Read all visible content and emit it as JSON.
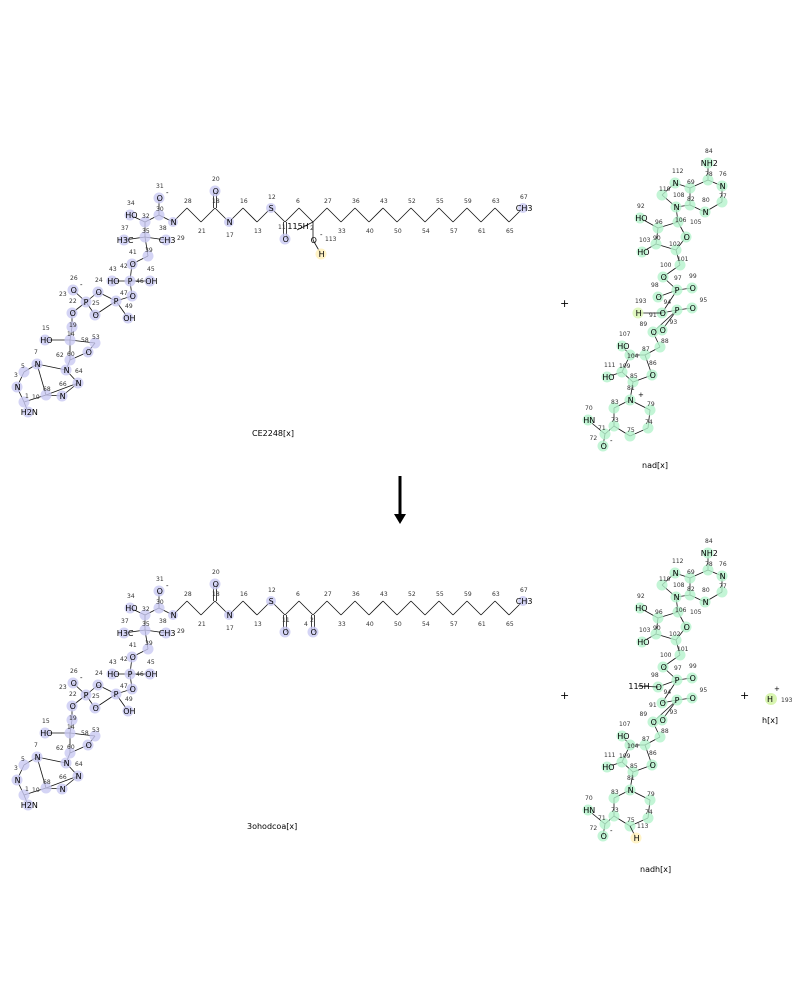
{
  "colors": {
    "N": "#2b50d8",
    "O": "#e0102a",
    "S": "#c8a000",
    "P": "#e08000",
    "H": "#000000",
    "coa_highlight": "#c9c9f2",
    "nad_highlight": "#b4f2cc",
    "h_highlight": "#d8f5b0",
    "moved_h_highlight": "#fff0b8"
  },
  "reaction": {
    "arrow": "down",
    "plus_signs": [
      "+",
      "+",
      "+"
    ],
    "reactants": [
      {
        "name": "CE2248[x]"
      },
      {
        "name": "nad[x]"
      }
    ],
    "products": [
      {
        "name": "3ohodcoa[x]"
      },
      {
        "name": "nadh[x]"
      },
      {
        "name": "h[x]",
        "atom": "H",
        "charge": "+",
        "number": "193"
      }
    ]
  },
  "coa_head": [
    {
      "t": "O",
      "n": "31",
      "q": "-"
    },
    {
      "t": "HO",
      "n": "34"
    },
    {
      "t": "",
      "n": "30"
    },
    {
      "t": "",
      "n": "32"
    },
    {
      "t": "",
      "n": "35"
    },
    {
      "t": "H3C",
      "n": "37"
    },
    {
      "t": "CH3",
      "n": "38"
    },
    {
      "t": "",
      "n": "39"
    },
    {
      "t": "O",
      "n": "41"
    },
    {
      "t": "P",
      "n": "42"
    },
    {
      "t": "HO",
      "n": "43"
    },
    {
      "t": "OH",
      "n": "45"
    },
    {
      "t": "O",
      "n": "46"
    },
    {
      "t": "P",
      "n": "47"
    },
    {
      "t": "O",
      "n": "24"
    },
    {
      "t": "OH",
      "n": "49"
    },
    {
      "t": "O",
      "n": "25"
    },
    {
      "t": "O",
      "n": "26",
      "q": "-"
    },
    {
      "t": "P",
      "n": "23"
    },
    {
      "t": "O",
      "n": "22"
    },
    {
      "t": "",
      "n": "19"
    },
    {
      "t": "HO",
      "n": "15"
    },
    {
      "t": "",
      "n": "14"
    },
    {
      "t": "",
      "n": "53"
    },
    {
      "t": "O",
      "n": "58"
    },
    {
      "t": "",
      "n": "60"
    },
    {
      "t": "N",
      "n": "62"
    },
    {
      "t": "N",
      "n": "7"
    },
    {
      "t": "",
      "n": "5"
    },
    {
      "t": "N",
      "n": "3"
    },
    {
      "t": "",
      "n": "1"
    },
    {
      "t": "",
      "n": "68"
    },
    {
      "t": "N",
      "n": "64"
    },
    {
      "t": "N",
      "n": "66"
    },
    {
      "t": "H2N",
      "n": "10"
    }
  ],
  "reactant_chain": [
    {
      "t": "N",
      "n": "29"
    },
    {
      "t": "",
      "n": "28"
    },
    {
      "t": "",
      "n": "21"
    },
    {
      "t": "",
      "n": "18",
      "o": {
        "t": "O",
        "n": "20"
      }
    },
    {
      "t": "N",
      "n": "17"
    },
    {
      "t": "",
      "n": "16"
    },
    {
      "t": "",
      "n": "13"
    },
    {
      "t": "S",
      "n": "12"
    },
    {
      "t": "",
      "n": "",
      "o": {
        "t": "O",
        "n": "11"
      }
    },
    {
      "t": "",
      "n": "6"
    },
    {
      "t": "",
      "n": "",
      "subs": [
        {
          "t": "115H",
          "n": ""
        },
        {
          "t": "O",
          "n": "2",
          "q": "-"
        },
        {
          "t": "H",
          "n": "113"
        }
      ]
    },
    {
      "t": "",
      "n": "27"
    },
    {
      "t": "",
      "n": "33"
    },
    {
      "t": "",
      "n": "36"
    },
    {
      "t": "",
      "n": "40"
    },
    {
      "t": "",
      "n": "43"
    },
    {
      "t": "",
      "n": "50"
    },
    {
      "t": "",
      "n": "52"
    },
    {
      "t": "",
      "n": "54"
    },
    {
      "t": "",
      "n": "55"
    },
    {
      "t": "",
      "n": "57"
    },
    {
      "t": "",
      "n": "59"
    },
    {
      "t": "",
      "n": "61"
    },
    {
      "t": "",
      "n": "63"
    },
    {
      "t": "",
      "n": "65"
    },
    {
      "t": "CH3",
      "n": "67"
    }
  ],
  "product_chain": [
    {
      "t": "N",
      "n": "29"
    },
    {
      "t": "",
      "n": "28"
    },
    {
      "t": "",
      "n": "21"
    },
    {
      "t": "",
      "n": "18",
      "o": {
        "t": "O",
        "n": "20"
      }
    },
    {
      "t": "N",
      "n": "17"
    },
    {
      "t": "",
      "n": "16"
    },
    {
      "t": "",
      "n": "13"
    },
    {
      "t": "S",
      "n": "12"
    },
    {
      "t": "",
      "n": "",
      "o": {
        "t": "O",
        "n": "11"
      }
    },
    {
      "t": "",
      "n": "6"
    },
    {
      "t": "",
      "n": "4",
      "o": {
        "t": "O",
        "n": "2"
      }
    },
    {
      "t": "",
      "n": "27"
    },
    {
      "t": "",
      "n": "33"
    },
    {
      "t": "",
      "n": "36"
    },
    {
      "t": "",
      "n": "40"
    },
    {
      "t": "",
      "n": "43"
    },
    {
      "t": "",
      "n": "50"
    },
    {
      "t": "",
      "n": "52"
    },
    {
      "t": "",
      "n": "54"
    },
    {
      "t": "",
      "n": "55"
    },
    {
      "t": "",
      "n": "57"
    },
    {
      "t": "",
      "n": "59"
    },
    {
      "t": "",
      "n": "61"
    },
    {
      "t": "",
      "n": "63"
    },
    {
      "t": "",
      "n": "65"
    },
    {
      "t": "CH3",
      "n": "67"
    }
  ],
  "nad_atoms": [
    {
      "t": "NH2",
      "n": "84"
    },
    {
      "t": "",
      "n": "78"
    },
    {
      "t": "N",
      "n": "76"
    },
    {
      "t": "",
      "n": "77"
    },
    {
      "t": "N",
      "n": "80"
    },
    {
      "t": "",
      "n": "82"
    },
    {
      "t": "",
      "n": "69"
    },
    {
      "t": "N",
      "n": "112"
    },
    {
      "t": "",
      "n": "110"
    },
    {
      "t": "N",
      "n": "108"
    },
    {
      "t": "",
      "n": "106"
    },
    {
      "t": "O",
      "n": "105"
    },
    {
      "t": "",
      "n": "102"
    },
    {
      "t": "",
      "n": "101"
    },
    {
      "t": "",
      "n": "96"
    },
    {
      "t": "HO",
      "n": "92"
    },
    {
      "t": "",
      "n": "90"
    },
    {
      "t": "HO",
      "n": "103"
    },
    {
      "t": "O",
      "n": "100"
    },
    {
      "t": "P",
      "n": "97"
    },
    {
      "t": "O",
      "n": "99"
    },
    {
      "t": "O",
      "n": "98"
    },
    {
      "t": "O",
      "n": "91"
    },
    {
      "t": "P",
      "n": "94"
    },
    {
      "t": "O",
      "n": "95"
    },
    {
      "t": "O",
      "n": "93"
    },
    {
      "t": "O",
      "n": "89"
    },
    {
      "t": "",
      "n": "88"
    },
    {
      "t": "",
      "n": "87"
    },
    {
      "t": "",
      "n": "104"
    },
    {
      "t": "HO",
      "n": "107"
    },
    {
      "t": "",
      "n": "109"
    },
    {
      "t": "HO",
      "n": "111"
    },
    {
      "t": "O",
      "n": "86"
    },
    {
      "t": "",
      "n": "85"
    },
    {
      "t": "N",
      "n": "81"
    },
    {
      "t": "",
      "n": "79"
    },
    {
      "t": "",
      "n": "74"
    },
    {
      "t": "",
      "n": "75"
    },
    {
      "t": "",
      "n": "73"
    },
    {
      "t": "",
      "n": "83"
    },
    {
      "t": "",
      "n": "71"
    },
    {
      "t": "HN",
      "n": "70"
    },
    {
      "t": "O",
      "n": "72",
      "q": "-"
    }
  ],
  "nad_extra": {
    "h": {
      "t": "H",
      "n": "193"
    },
    "n_charge": "+"
  },
  "nadh_extra": {
    "h": {
      "t": "115H",
      "n": ""
    },
    "ring_h": {
      "t": "H",
      "n": "113"
    }
  }
}
